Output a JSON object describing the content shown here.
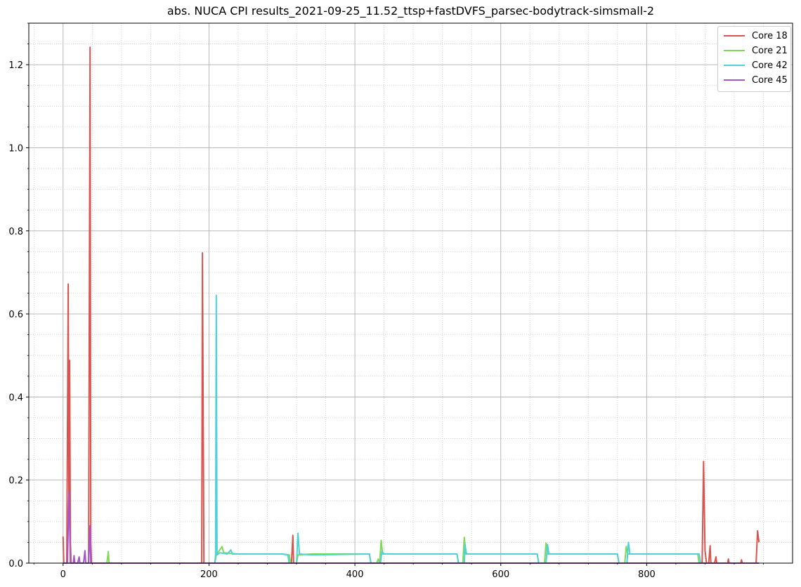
{
  "chart_data": {
    "type": "line",
    "title": "abs. NUCA CPI results_2021-09-25_11.52_ttsp+fastDVFS_parsec-bodytrack-simsmall-2",
    "xlabel": "",
    "ylabel": "",
    "xlim": [
      -47,
      1000
    ],
    "ylim": [
      0,
      1.3
    ],
    "xticks": [
      0,
      200,
      400,
      600,
      800
    ],
    "yticks": [
      0.0,
      0.2,
      0.4,
      0.6,
      0.8,
      1.0,
      1.2
    ],
    "xtick_labels": [
      "0",
      "200",
      "400",
      "600",
      "800"
    ],
    "ytick_labels": [
      "0.0",
      "0.2",
      "0.4",
      "0.6",
      "0.8",
      "1.0",
      "1.2"
    ],
    "grid": {
      "major": true,
      "minor": true
    },
    "legend_position": "top-right",
    "series": [
      {
        "name": "Core 18",
        "color": "#d9534f",
        "points": [
          [
            0,
            0.064
          ],
          [
            1,
            0
          ],
          [
            5,
            0
          ],
          [
            7,
            0.672
          ],
          [
            8,
            0.1
          ],
          [
            9,
            0.488
          ],
          [
            10,
            0.05
          ],
          [
            11,
            0
          ],
          [
            35,
            0
          ],
          [
            37,
            1.242
          ],
          [
            38,
            0.05
          ],
          [
            39,
            0
          ],
          [
            190,
            0
          ],
          [
            191,
            0.747
          ],
          [
            193,
            0
          ],
          [
            313,
            0
          ],
          [
            315,
            0.067
          ],
          [
            316,
            0
          ],
          [
            876,
            0
          ],
          [
            878,
            0.245
          ],
          [
            880,
            0.03
          ],
          [
            882,
            0
          ],
          [
            885,
            0
          ],
          [
            887,
            0.042
          ],
          [
            888,
            0
          ],
          [
            893,
            0
          ],
          [
            895,
            0.015
          ],
          [
            896,
            0
          ],
          [
            911,
            0
          ],
          [
            912,
            0.01
          ],
          [
            913,
            0
          ],
          [
            929,
            0
          ],
          [
            930,
            0.008
          ],
          [
            931,
            0
          ],
          [
            950,
            0
          ],
          [
            952,
            0.078
          ],
          [
            954,
            0.05
          ]
        ]
      },
      {
        "name": "Core 21",
        "color": "#7ed957",
        "points": [
          [
            60,
            0
          ],
          [
            62,
            0.028
          ],
          [
            63,
            0
          ],
          [
            208,
            0
          ],
          [
            210,
            0.02
          ],
          [
            214,
            0.03
          ],
          [
            218,
            0.04
          ],
          [
            220,
            0.025
          ],
          [
            240,
            0.022
          ],
          [
            300,
            0.022
          ],
          [
            310,
            0.02
          ],
          [
            312,
            0
          ],
          [
            320,
            0
          ],
          [
            322,
            0.02
          ],
          [
            340,
            0.022
          ],
          [
            420,
            0.022
          ],
          [
            422,
            0
          ],
          [
            430,
            0
          ],
          [
            432,
            0.01
          ],
          [
            434,
            0
          ],
          [
            436,
            0.055
          ],
          [
            438,
            0.022
          ],
          [
            540,
            0.022
          ],
          [
            542,
            0
          ],
          [
            548,
            0
          ],
          [
            550,
            0.062
          ],
          [
            552,
            0.022
          ],
          [
            650,
            0.022
          ],
          [
            652,
            0
          ],
          [
            660,
            0
          ],
          [
            662,
            0.048
          ],
          [
            664,
            0.022
          ],
          [
            760,
            0.022
          ],
          [
            762,
            0
          ],
          [
            770,
            0
          ],
          [
            772,
            0.04
          ],
          [
            774,
            0.022
          ],
          [
            870,
            0.022
          ],
          [
            872,
            0
          ],
          [
            954,
            0
          ]
        ]
      },
      {
        "name": "Core 42",
        "color": "#4fd1d9",
        "points": [
          [
            0,
            0
          ],
          [
            208,
            0
          ],
          [
            209,
            0.02
          ],
          [
            210,
            0.645
          ],
          [
            211,
            0.02
          ],
          [
            215,
            0.025
          ],
          [
            225,
            0.022
          ],
          [
            230,
            0.032
          ],
          [
            232,
            0.022
          ],
          [
            300,
            0.022
          ],
          [
            308,
            0.02
          ],
          [
            310,
            0
          ],
          [
            320,
            0
          ],
          [
            322,
            0.072
          ],
          [
            324,
            0.022
          ],
          [
            340,
            0.02
          ],
          [
            420,
            0.022
          ],
          [
            422,
            0
          ],
          [
            435,
            0
          ],
          [
            437,
            0.028
          ],
          [
            440,
            0.022
          ],
          [
            540,
            0.022
          ],
          [
            542,
            0
          ],
          [
            550,
            0
          ],
          [
            551,
            0.045
          ],
          [
            553,
            0.022
          ],
          [
            650,
            0.022
          ],
          [
            652,
            0
          ],
          [
            662,
            0
          ],
          [
            664,
            0.045
          ],
          [
            666,
            0.022
          ],
          [
            760,
            0.022
          ],
          [
            762,
            0
          ],
          [
            773,
            0
          ],
          [
            775,
            0.05
          ],
          [
            777,
            0.022
          ],
          [
            868,
            0.022
          ],
          [
            872,
            0.022
          ],
          [
            874,
            0
          ],
          [
            954,
            0
          ]
        ]
      },
      {
        "name": "Core 45",
        "color": "#a855c9",
        "points": [
          [
            0,
            0
          ],
          [
            6,
            0
          ],
          [
            8,
            0.172
          ],
          [
            10,
            0
          ],
          [
            14,
            0
          ],
          [
            15,
            0.018
          ],
          [
            16,
            0
          ],
          [
            20,
            0
          ],
          [
            22,
            0.015
          ],
          [
            23,
            0
          ],
          [
            28,
            0
          ],
          [
            30,
            0.03
          ],
          [
            31,
            0
          ],
          [
            35,
            0
          ],
          [
            37,
            0.09
          ],
          [
            38,
            0
          ],
          [
            954,
            0
          ]
        ]
      }
    ]
  }
}
